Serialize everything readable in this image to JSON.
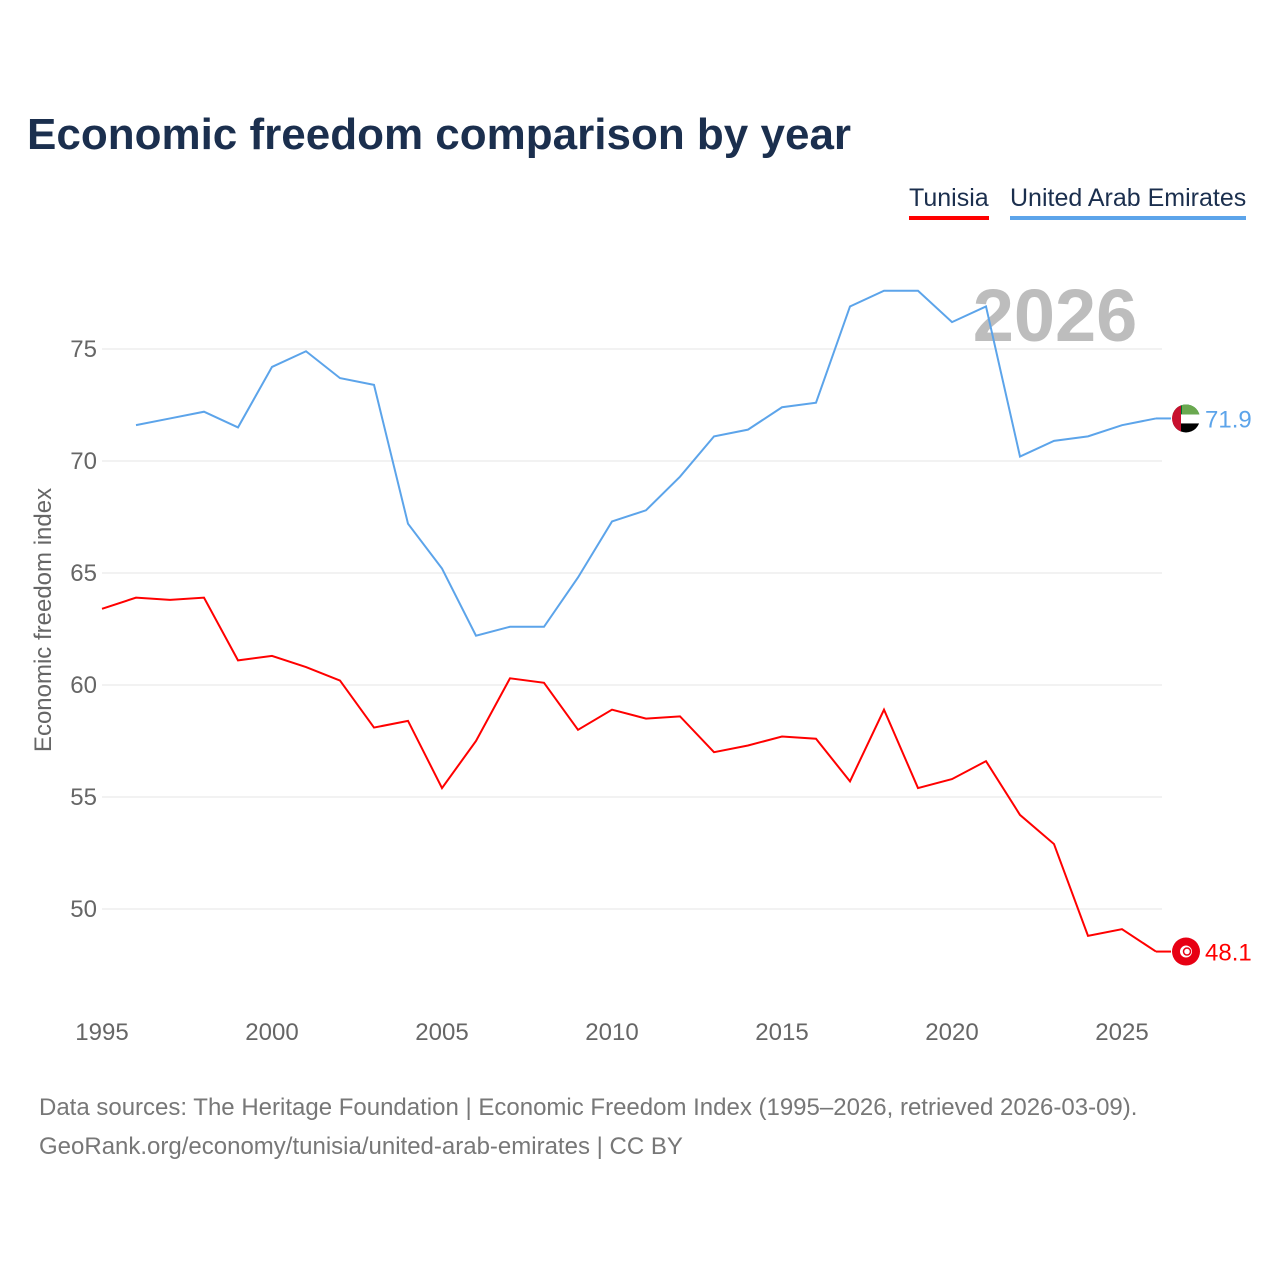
{
  "chart_data": {
    "type": "line",
    "title": "Economic freedom comparison by year",
    "xlabel": "",
    "ylabel": "Economic freedom index",
    "xlim": [
      1995,
      2026
    ],
    "ylim": [
      45.5,
      79.5
    ],
    "grid": true,
    "legend_position": "top-right",
    "watermark_year": "2026",
    "x_ticks": [
      "1995",
      "2000",
      "2005",
      "2010",
      "2015",
      "2020",
      "2025"
    ],
    "y_ticks": [
      "50",
      "55",
      "60",
      "65",
      "70",
      "75"
    ],
    "series": [
      {
        "name": "Tunisia",
        "color": "#ff0000",
        "end_label": "48.1",
        "x": [
          1995,
          1996,
          1997,
          1998,
          1999,
          2000,
          2001,
          2002,
          2003,
          2004,
          2005,
          2006,
          2007,
          2008,
          2009,
          2010,
          2011,
          2012,
          2013,
          2014,
          2015,
          2016,
          2017,
          2018,
          2019,
          2020,
          2021,
          2022,
          2023,
          2024,
          2025,
          2026
        ],
        "values": [
          63.4,
          63.9,
          63.8,
          63.9,
          61.1,
          61.3,
          60.8,
          60.2,
          58.1,
          58.4,
          55.4,
          57.5,
          60.3,
          60.1,
          58.0,
          58.9,
          58.5,
          58.6,
          57.0,
          57.3,
          57.7,
          57.6,
          55.7,
          58.9,
          55.4,
          55.8,
          56.6,
          54.2,
          52.9,
          48.8,
          49.1,
          48.1
        ]
      },
      {
        "name": "United Arab Emirates",
        "color": "#5ca4ea",
        "end_label": "71.9",
        "x": [
          1996,
          1997,
          1998,
          1999,
          2000,
          2001,
          2002,
          2003,
          2004,
          2005,
          2006,
          2007,
          2008,
          2009,
          2010,
          2011,
          2012,
          2013,
          2014,
          2015,
          2016,
          2017,
          2018,
          2019,
          2020,
          2021,
          2022,
          2023,
          2024,
          2025,
          2026
        ],
        "values": [
          71.6,
          71.9,
          72.2,
          71.5,
          74.2,
          74.9,
          73.7,
          73.4,
          67.2,
          65.2,
          62.2,
          62.6,
          62.6,
          64.8,
          67.3,
          67.8,
          69.3,
          71.1,
          71.4,
          72.4,
          72.6,
          76.9,
          77.6,
          77.6,
          76.2,
          76.9,
          70.2,
          70.9,
          71.1,
          71.6,
          71.9
        ]
      }
    ]
  },
  "footer": {
    "line1": "Data sources: The Heritage Foundation | Economic Freedom Index (1995–2026, retrieved 2026-03-09).",
    "line2": "GeoRank.org/economy/tunisia/united-arab-emirates | CC BY"
  }
}
